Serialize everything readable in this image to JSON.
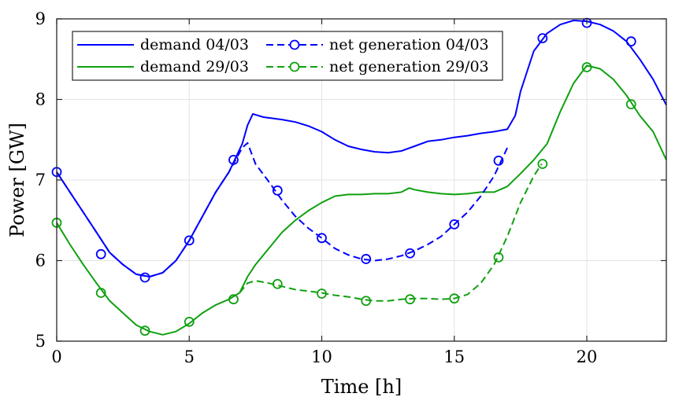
{
  "chart_data": {
    "type": "line",
    "title": "",
    "xlabel": "Time [h]",
    "ylabel": "Power [GW]",
    "xlim": [
      0,
      23
    ],
    "ylim": [
      5,
      9
    ],
    "xticks": [
      0,
      5,
      10,
      15,
      20
    ],
    "yticks": [
      5,
      6,
      7,
      8,
      9
    ],
    "grid": true,
    "legend_position": "top-left",
    "series": [
      {
        "name": "demand 04/03",
        "color": "#0000ff",
        "style": "solid",
        "marker": "none",
        "x": [
          0,
          0.5,
          1,
          1.5,
          2,
          2.5,
          3,
          3.5,
          4,
          4.5,
          5,
          5.5,
          6,
          6.5,
          7,
          7.2,
          7.4,
          7.8,
          8.5,
          9,
          9.5,
          10,
          10.5,
          11,
          11.5,
          12,
          12.5,
          13,
          13.5,
          14,
          14.5,
          15,
          15.5,
          16,
          16.5,
          17,
          17.3,
          17.5,
          18,
          18.5,
          19,
          19.5,
          20,
          20.5,
          21,
          21.5,
          22,
          22.5,
          23
        ],
        "y": [
          7.1,
          6.85,
          6.6,
          6.35,
          6.1,
          5.95,
          5.83,
          5.8,
          5.85,
          6.0,
          6.25,
          6.55,
          6.85,
          7.1,
          7.45,
          7.68,
          7.82,
          7.78,
          7.75,
          7.72,
          7.67,
          7.6,
          7.5,
          7.42,
          7.38,
          7.35,
          7.34,
          7.36,
          7.42,
          7.48,
          7.5,
          7.53,
          7.55,
          7.58,
          7.6,
          7.63,
          7.8,
          8.1,
          8.6,
          8.82,
          8.93,
          8.98,
          8.97,
          8.93,
          8.85,
          8.72,
          8.5,
          8.25,
          7.93
        ]
      },
      {
        "name": "net generation 04/03",
        "color": "#0000ff",
        "style": "dashed",
        "marker": "circle",
        "x": [
          0,
          0.5,
          1,
          1.5,
          2,
          2.5,
          3,
          3.5,
          4,
          4.5,
          5,
          5.5,
          6,
          6.5,
          7,
          7.2,
          7.5,
          8,
          8.5,
          9,
          9.5,
          10,
          10.5,
          11,
          11.5,
          12,
          12.5,
          13,
          13.5,
          14,
          14.5,
          15,
          15.5,
          16,
          16.5,
          17
        ],
        "y": [
          7.1,
          6.85,
          6.6,
          6.35,
          6.1,
          5.95,
          5.83,
          5.8,
          5.85,
          6.0,
          6.25,
          6.55,
          6.85,
          7.1,
          7.4,
          7.46,
          7.2,
          6.98,
          6.75,
          6.55,
          6.4,
          6.28,
          6.15,
          6.07,
          6.02,
          6.0,
          6.02,
          6.06,
          6.12,
          6.2,
          6.3,
          6.45,
          6.6,
          6.8,
          7.05,
          7.4
        ],
        "markers_x": [
          0,
          1.67,
          3.33,
          5.0,
          6.67,
          8.33,
          10.0,
          11.67,
          13.33,
          15.0,
          16.67,
          18.33,
          20.0,
          21.67
        ],
        "markers_y": [
          7.1,
          6.08,
          5.79,
          6.25,
          7.25,
          6.87,
          6.28,
          6.02,
          6.09,
          6.45,
          7.24,
          8.76,
          8.95,
          8.72
        ]
      },
      {
        "name": "demand 29/03",
        "color": "#10a010",
        "style": "solid",
        "marker": "none",
        "x": [
          0,
          0.5,
          1,
          1.5,
          2,
          2.5,
          3,
          3.5,
          4,
          4.5,
          5,
          5.5,
          6,
          6.5,
          6.9,
          7.2,
          7.5,
          8,
          8.5,
          9,
          9.5,
          10,
          10.5,
          11,
          11.5,
          12,
          12.5,
          13,
          13.3,
          13.5,
          14,
          14.5,
          15,
          15.5,
          16,
          16.5,
          17,
          17.5,
          18,
          18.5,
          19,
          19.5,
          20,
          20.5,
          21,
          21.5,
          22,
          22.5,
          23
        ],
        "y": [
          6.47,
          6.2,
          5.95,
          5.72,
          5.5,
          5.35,
          5.2,
          5.12,
          5.08,
          5.12,
          5.22,
          5.35,
          5.45,
          5.52,
          5.6,
          5.8,
          5.95,
          6.15,
          6.35,
          6.5,
          6.62,
          6.72,
          6.8,
          6.82,
          6.82,
          6.83,
          6.83,
          6.85,
          6.9,
          6.88,
          6.85,
          6.83,
          6.82,
          6.83,
          6.85,
          6.85,
          6.92,
          7.08,
          7.25,
          7.45,
          7.85,
          8.2,
          8.42,
          8.38,
          8.25,
          8.05,
          7.8,
          7.6,
          7.25
        ]
      },
      {
        "name": "net generation 29/03",
        "color": "#10a010",
        "style": "dashed",
        "marker": "circle",
        "x": [
          6.9,
          7.2,
          7.5,
          8,
          8.5,
          9,
          9.5,
          10,
          10.5,
          11,
          11.5,
          12,
          12.5,
          13,
          13.5,
          14,
          14.5,
          15,
          15.5,
          16,
          16.5,
          17,
          17.5,
          18,
          18.3
        ],
        "y": [
          5.6,
          5.72,
          5.75,
          5.72,
          5.68,
          5.64,
          5.62,
          5.6,
          5.57,
          5.55,
          5.52,
          5.5,
          5.5,
          5.52,
          5.53,
          5.53,
          5.52,
          5.53,
          5.58,
          5.72,
          5.95,
          6.3,
          6.72,
          7.05,
          7.2
        ],
        "markers_x": [
          0,
          1.67,
          3.33,
          5.0,
          6.67,
          8.33,
          10.0,
          11.67,
          13.33,
          15.0,
          16.67,
          18.33,
          20.0,
          21.67
        ],
        "markers_y": [
          6.47,
          5.6,
          5.13,
          5.24,
          5.52,
          5.71,
          5.59,
          5.5,
          5.52,
          5.53,
          6.04,
          7.2,
          8.4,
          7.94
        ]
      }
    ]
  }
}
